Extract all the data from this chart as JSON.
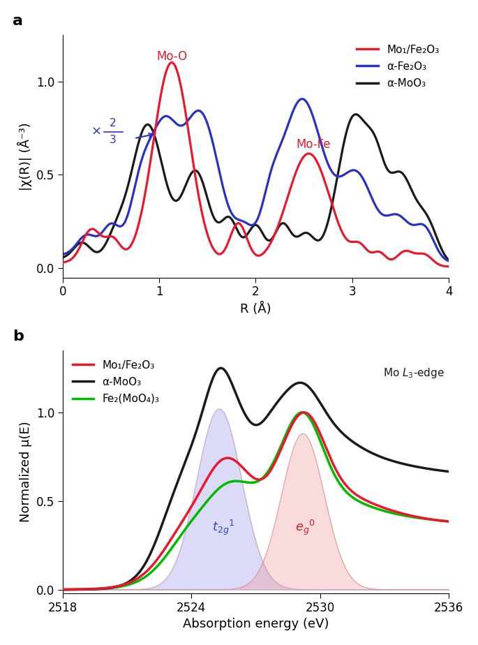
{
  "panel_a": {
    "xlabel": "R (Å)",
    "ylabel": "|χ(R)| (Å⁻³)",
    "xlim": [
      0,
      4
    ],
    "ylim": [
      -0.05,
      1.25
    ],
    "yticks": [
      0.0,
      0.5,
      1.0
    ],
    "xticks": [
      0,
      1,
      2,
      3,
      4
    ],
    "legend_entries": [
      "Mo₁/Fe₂O₃",
      "α-Fe₂O₃",
      "α-MoO₃"
    ],
    "legend_colors": [
      "#e8192c",
      "#2832c2",
      "#1a1a1a"
    ]
  },
  "panel_b": {
    "xlabel": "Absorption energy (eV)",
    "ylabel": "Normalized μ(E)",
    "xlim": [
      2518,
      2536
    ],
    "ylim": [
      -0.02,
      1.35
    ],
    "yticks": [
      0.0,
      0.5,
      1.0
    ],
    "xticks": [
      2518,
      2524,
      2530,
      2536
    ],
    "legend_entries": [
      "Mo₁/Fe₂O₃",
      "α-MoO₃",
      "Fe₂(MoO₄)₃"
    ],
    "legend_colors": [
      "#e8192c",
      "#1a1a1a",
      "#00bb00"
    ]
  },
  "colors": {
    "red": "#e8192c",
    "blue": "#2832c2",
    "black": "#1a1a1a",
    "green": "#00bb00"
  }
}
